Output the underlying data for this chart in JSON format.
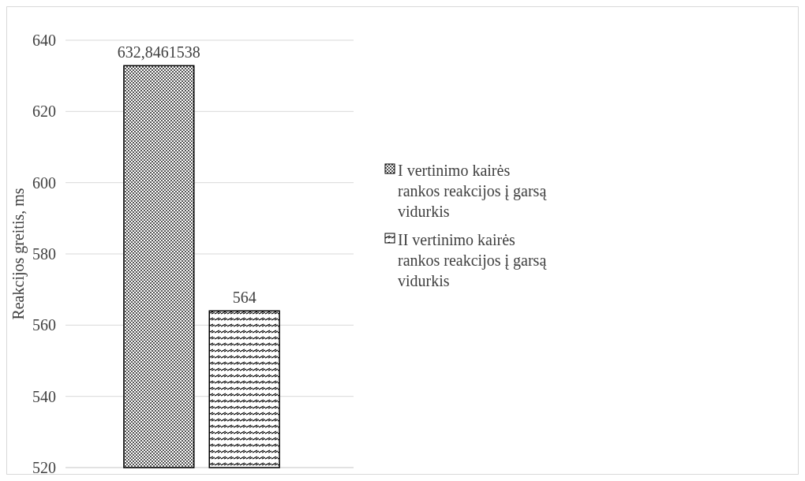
{
  "chart_data": {
    "type": "bar",
    "categories": [
      null
    ],
    "ylabel": "Reakcijos greitis, ms",
    "series": [
      {
        "name": "I vertinimo kairės rankos reakcijos į garsą vidurkis",
        "color": "#000000",
        "values": [
          632.8461538
        ],
        "value_labels": [
          "632,8461538"
        ]
      },
      {
        "name": "II vertinimo kairės rankos reakcijos į garsą vidurkis",
        "color": "#000000",
        "values": [
          564
        ],
        "value_labels": [
          "564"
        ]
      }
    ],
    "ylim": [
      520,
      640
    ],
    "yticks": [
      520,
      540,
      560,
      580,
      600,
      620,
      640
    ],
    "grid": "y",
    "legend": "right"
  }
}
